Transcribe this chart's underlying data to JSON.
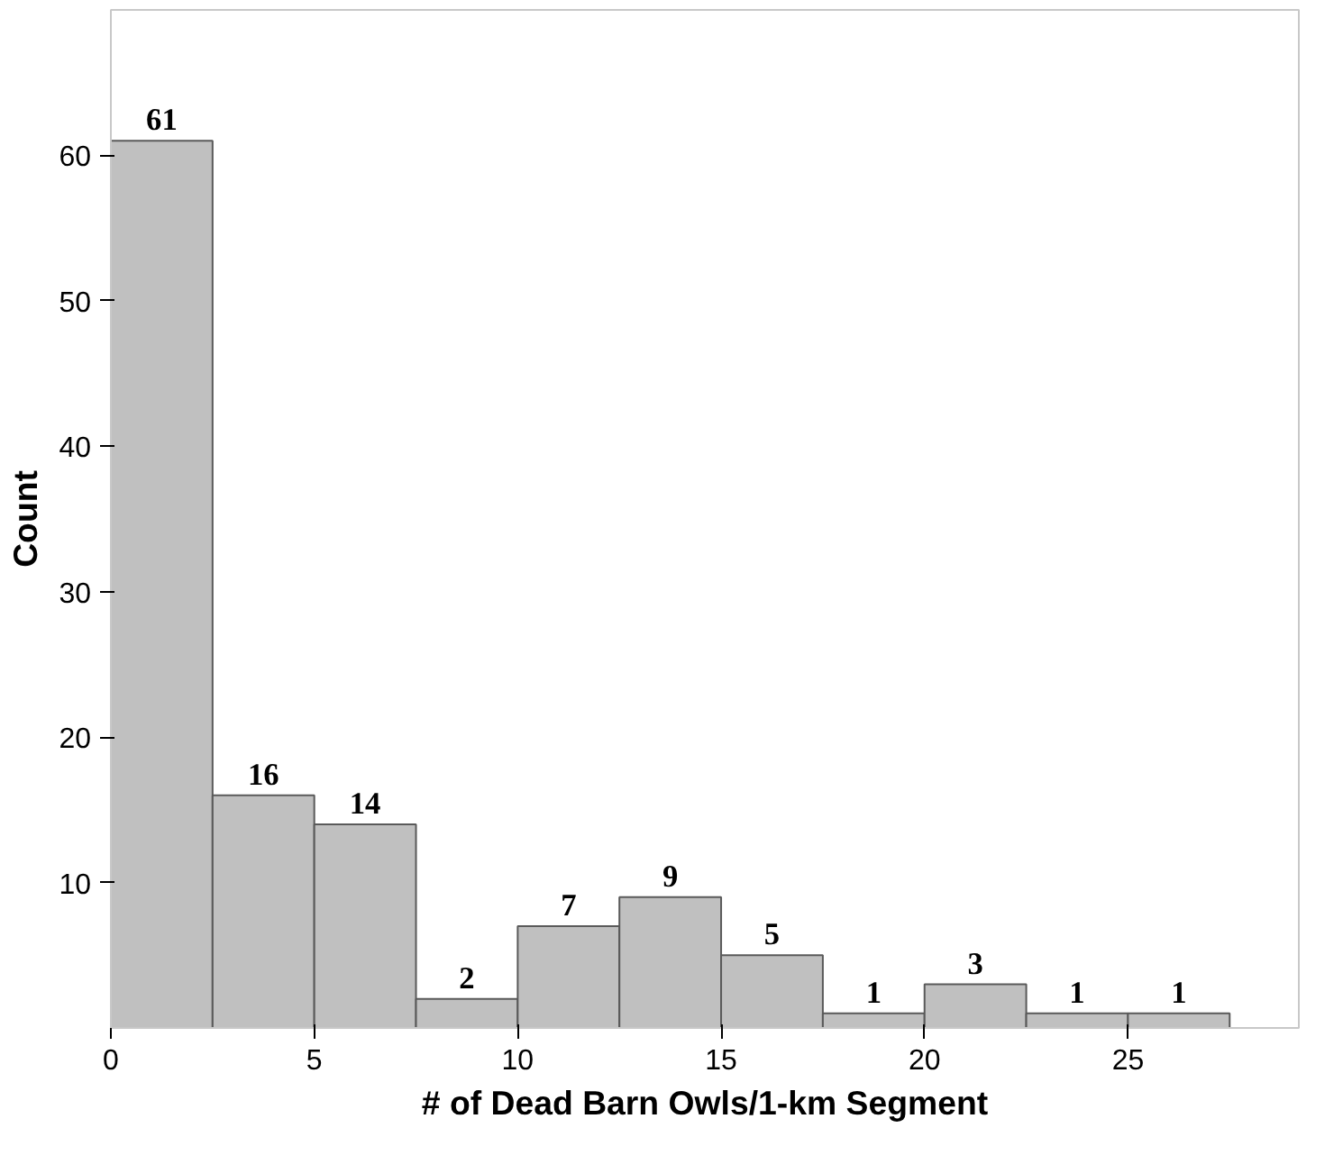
{
  "chart_data": {
    "type": "histogram",
    "xlabel": "# of Dead Barn Owls/1-km Segment",
    "ylabel": "Count",
    "bins": [
      0,
      2.5,
      5,
      7.5,
      10,
      12.5,
      15,
      17.5,
      20,
      22.5,
      25,
      27.5
    ],
    "values": [
      61,
      16,
      14,
      2,
      7,
      9,
      5,
      1,
      3,
      1,
      1
    ],
    "color": "#c0c0c0",
    "data_labels": true,
    "grid": false,
    "xlim": [
      0,
      29.2
    ],
    "ylim": [
      0,
      70
    ],
    "xticks": [
      0,
      5,
      10,
      15,
      20,
      25
    ],
    "yticks": [
      10,
      20,
      30,
      40,
      50,
      60
    ]
  }
}
